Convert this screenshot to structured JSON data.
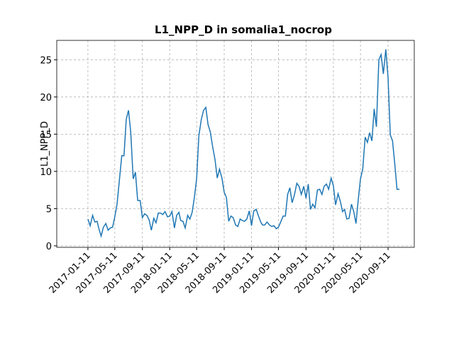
{
  "chart_data": {
    "type": "line",
    "title": "L1_NPP_D in somalia1_nocrop",
    "y_label": "L1_NPP_D",
    "x": [
      "2017-01-11",
      "2017-01-21",
      "2017-02-01",
      "2017-02-11",
      "2017-02-21",
      "2017-03-01",
      "2017-03-11",
      "2017-03-21",
      "2017-04-01",
      "2017-04-11",
      "2017-04-21",
      "2017-05-01",
      "2017-05-11",
      "2017-05-21",
      "2017-06-01",
      "2017-06-11",
      "2017-06-21",
      "2017-07-01",
      "2017-07-11",
      "2017-07-21",
      "2017-08-01",
      "2017-08-11",
      "2017-08-21",
      "2017-09-01",
      "2017-09-11",
      "2017-09-21",
      "2017-10-01",
      "2017-10-11",
      "2017-10-21",
      "2017-11-01",
      "2017-11-11",
      "2017-11-21",
      "2017-12-01",
      "2017-12-11",
      "2017-12-21",
      "2018-01-01",
      "2018-01-11",
      "2018-01-21",
      "2018-02-01",
      "2018-02-11",
      "2018-02-21",
      "2018-03-01",
      "2018-03-11",
      "2018-03-21",
      "2018-04-01",
      "2018-04-11",
      "2018-04-21",
      "2018-05-01",
      "2018-05-11",
      "2018-05-21",
      "2018-06-01",
      "2018-06-11",
      "2018-06-21",
      "2018-07-01",
      "2018-07-11",
      "2018-07-21",
      "2018-08-01",
      "2018-08-11",
      "2018-08-21",
      "2018-09-01",
      "2018-09-11",
      "2018-09-21",
      "2018-10-01",
      "2018-10-11",
      "2018-10-21",
      "2018-11-01",
      "2018-11-11",
      "2018-11-21",
      "2018-12-01",
      "2018-12-11",
      "2018-12-21",
      "2019-01-01",
      "2019-01-11",
      "2019-01-21",
      "2019-02-01",
      "2019-02-11",
      "2019-02-21",
      "2019-03-01",
      "2019-03-11",
      "2019-03-21",
      "2019-04-01",
      "2019-04-11",
      "2019-04-21",
      "2019-05-01",
      "2019-05-11",
      "2019-05-21",
      "2019-06-01",
      "2019-06-11",
      "2019-06-21",
      "2019-07-01",
      "2019-07-11",
      "2019-07-21",
      "2019-08-01",
      "2019-08-11",
      "2019-08-21",
      "2019-09-01",
      "2019-09-11",
      "2019-09-21",
      "2019-10-01",
      "2019-10-11",
      "2019-10-21",
      "2019-11-01",
      "2019-11-11",
      "2019-11-21",
      "2019-12-01",
      "2019-12-11",
      "2019-12-21",
      "2020-01-01",
      "2020-01-11",
      "2020-01-21",
      "2020-02-01",
      "2020-02-11",
      "2020-02-21",
      "2020-03-01",
      "2020-03-11",
      "2020-03-21",
      "2020-04-01",
      "2020-04-11",
      "2020-04-21",
      "2020-05-01",
      "2020-05-11",
      "2020-05-21",
      "2020-06-01",
      "2020-06-11",
      "2020-06-21",
      "2020-07-01",
      "2020-07-11",
      "2020-07-21",
      "2020-08-01",
      "2020-08-11",
      "2020-08-21",
      "2020-09-01",
      "2020-09-11",
      "2020-09-21",
      "2020-10-01",
      "2020-10-11",
      "2020-10-21",
      "2020-11-01"
    ],
    "series": [
      {
        "name": "L1_NPP_D",
        "color": "#1f77b4",
        "values": [
          3.6,
          2.7,
          4.1,
          3.2,
          3.3,
          2.3,
          1.3,
          2.5,
          3.0,
          2.1,
          2.4,
          2.5,
          3.9,
          5.6,
          9.0,
          12.1,
          12.1,
          17.0,
          18.2,
          15.3,
          9.0,
          9.9,
          6.1,
          6.1,
          3.8,
          4.3,
          4.1,
          3.5,
          2.1,
          3.7,
          3.1,
          4.4,
          4.4,
          4.2,
          4.6,
          3.9,
          4.0,
          4.6,
          2.4,
          4.1,
          4.5,
          3.4,
          3.3,
          2.4,
          4.1,
          3.6,
          4.5,
          6.5,
          9.0,
          14.8,
          17.0,
          18.2,
          18.6,
          16.3,
          15.3,
          13.4,
          11.6,
          9.1,
          10.3,
          9.1,
          7.2,
          6.5,
          3.3,
          4.0,
          3.8,
          2.8,
          2.6,
          3.6,
          3.4,
          3.3,
          3.6,
          4.7,
          2.7,
          4.7,
          4.9,
          4.0,
          3.2,
          2.8,
          2.8,
          3.2,
          2.8,
          2.6,
          2.7,
          2.3,
          2.5,
          3.2,
          4.0,
          4.0,
          6.9,
          7.8,
          5.8,
          6.8,
          8.4,
          8.0,
          6.9,
          8.0,
          6.4,
          8.3,
          4.9,
          5.6,
          5.1,
          7.5,
          7.6,
          6.9,
          8.0,
          8.3,
          7.6,
          9.1,
          8.1,
          5.5,
          7.0,
          6.0,
          4.6,
          4.9,
          3.6,
          3.7,
          5.6,
          4.6,
          3.0,
          6.2,
          9.0,
          10.3,
          14.6,
          13.9,
          15.2,
          14.1,
          18.4,
          16.0,
          25.0,
          25.7,
          23.1,
          26.4,
          22.6,
          14.9,
          14.1,
          11.0,
          7.6,
          7.6
        ]
      }
    ],
    "xlim": [
      "2016-08-25",
      "2021-01-06"
    ],
    "xticks": [
      "2017-01-11",
      "2017-05-11",
      "2017-09-11",
      "2018-01-11",
      "2018-05-11",
      "2018-09-11",
      "2019-01-11",
      "2019-05-11",
      "2019-09-11",
      "2020-01-11",
      "2020-05-11",
      "2020-09-11"
    ],
    "ylim": [
      -0.2,
      27.6
    ],
    "yticks": [
      0,
      5,
      10,
      15,
      20,
      25
    ],
    "grid": true
  }
}
